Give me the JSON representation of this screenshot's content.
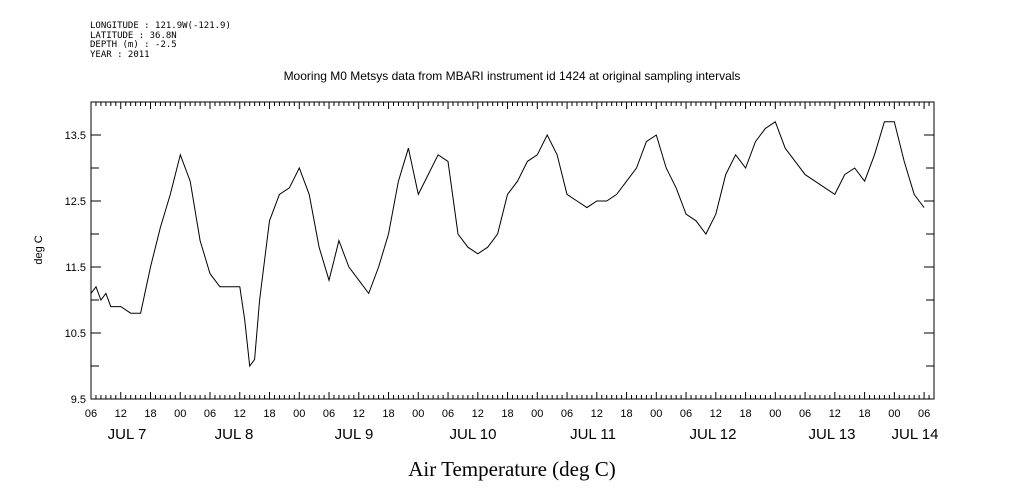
{
  "metadata": {
    "longitude": "LONGITUDE : 121.9W(-121.9)",
    "latitude": "LATITUDE : 36.8N",
    "depth": "DEPTH (m) : -2.5",
    "year": "YEAR : 2011"
  },
  "chart_data": {
    "type": "line",
    "title": "Mooring M0 Metsys data from MBARI instrument id 1424 at original sampling intervals",
    "xlabel": "Air Temperature (deg C)",
    "ylabel": "deg C",
    "ylim": [
      9.5,
      14.0
    ],
    "yticks": [
      9.5,
      10.5,
      11.5,
      12.5,
      13.5
    ],
    "xlim": [
      "2011-07-07 06:00",
      "2011-07-14 08:00"
    ],
    "x_hour_tick_labels": [
      "06",
      "12",
      "18",
      "00",
      "06",
      "12",
      "18",
      "00",
      "06",
      "12",
      "18",
      "00",
      "06",
      "12",
      "18",
      "00",
      "06",
      "12",
      "18",
      "00",
      "06",
      "12",
      "18",
      "00",
      "06",
      "12",
      "18",
      "00",
      "06"
    ],
    "x_day_labels": [
      "JUL 7",
      "JUL 8",
      "JUL 9",
      "JUL 10",
      "JUL 11",
      "JUL 12",
      "JUL 13",
      "JUL 14"
    ],
    "grid": false,
    "series": [
      {
        "color": "#000000",
        "x": [
          "2011-07-07 06:00",
          "2011-07-07 07:00",
          "2011-07-07 08:00",
          "2011-07-07 09:00",
          "2011-07-07 10:00",
          "2011-07-07 12:00",
          "2011-07-07 14:00",
          "2011-07-07 16:00",
          "2011-07-07 18:00",
          "2011-07-07 20:00",
          "2011-07-07 22:00",
          "2011-07-08 00:00",
          "2011-07-08 02:00",
          "2011-07-08 04:00",
          "2011-07-08 06:00",
          "2011-07-08 08:00",
          "2011-07-08 10:00",
          "2011-07-08 12:00",
          "2011-07-08 13:00",
          "2011-07-08 14:00",
          "2011-07-08 15:00",
          "2011-07-08 16:00",
          "2011-07-08 18:00",
          "2011-07-08 20:00",
          "2011-07-08 22:00",
          "2011-07-09 00:00",
          "2011-07-09 02:00",
          "2011-07-09 04:00",
          "2011-07-09 06:00",
          "2011-07-09 07:00",
          "2011-07-09 08:00",
          "2011-07-09 10:00",
          "2011-07-09 12:00",
          "2011-07-09 14:00",
          "2011-07-09 16:00",
          "2011-07-09 18:00",
          "2011-07-09 20:00",
          "2011-07-09 22:00",
          "2011-07-10 00:00",
          "2011-07-10 02:00",
          "2011-07-10 04:00",
          "2011-07-10 06:00",
          "2011-07-10 08:00",
          "2011-07-10 10:00",
          "2011-07-10 12:00",
          "2011-07-10 14:00",
          "2011-07-10 16:00",
          "2011-07-10 18:00",
          "2011-07-10 20:00",
          "2011-07-10 22:00",
          "2011-07-11 00:00",
          "2011-07-11 02:00",
          "2011-07-11 04:00",
          "2011-07-11 06:00",
          "2011-07-11 08:00",
          "2011-07-11 10:00",
          "2011-07-11 12:00",
          "2011-07-11 14:00",
          "2011-07-11 16:00",
          "2011-07-11 18:00",
          "2011-07-11 20:00",
          "2011-07-11 22:00",
          "2011-07-12 00:00",
          "2011-07-12 02:00",
          "2011-07-12 04:00",
          "2011-07-12 06:00",
          "2011-07-12 08:00",
          "2011-07-12 10:00",
          "2011-07-12 12:00",
          "2011-07-12 14:00",
          "2011-07-12 16:00",
          "2011-07-12 18:00",
          "2011-07-12 20:00",
          "2011-07-12 22:00",
          "2011-07-13 00:00",
          "2011-07-13 02:00",
          "2011-07-13 04:00",
          "2011-07-13 06:00",
          "2011-07-13 08:00",
          "2011-07-13 10:00",
          "2011-07-13 12:00",
          "2011-07-13 14:00",
          "2011-07-13 16:00",
          "2011-07-13 18:00",
          "2011-07-13 20:00",
          "2011-07-13 22:00",
          "2011-07-14 00:00",
          "2011-07-14 02:00",
          "2011-07-14 04:00",
          "2011-07-14 05:00",
          "2011-07-14 06:00"
        ],
        "y": [
          11.1,
          11.2,
          11.0,
          11.1,
          10.9,
          10.9,
          10.8,
          10.8,
          11.5,
          12.1,
          12.6,
          13.2,
          12.8,
          11.9,
          11.4,
          11.2,
          11.2,
          11.2,
          10.7,
          10.0,
          10.1,
          11.0,
          12.2,
          12.6,
          12.7,
          13.0,
          12.6,
          11.8,
          11.3,
          11.6,
          11.9,
          11.5,
          11.3,
          11.1,
          11.5,
          12.0,
          12.8,
          13.3,
          12.6,
          12.9,
          13.2,
          13.1,
          12.0,
          11.8,
          11.7,
          11.8,
          12.0,
          12.6,
          12.8,
          13.1,
          13.2,
          13.5,
          13.2,
          12.6,
          12.5,
          12.4,
          12.5,
          12.5,
          12.6,
          12.8,
          13.0,
          13.4,
          13.5,
          13.0,
          12.7,
          12.3,
          12.2,
          12.0,
          12.3,
          12.9,
          13.2,
          13.0,
          13.4,
          13.6,
          13.7,
          13.3,
          13.1,
          12.9,
          12.8,
          12.7,
          12.6,
          12.9,
          13.0,
          12.8,
          13.2,
          13.7,
          13.7,
          13.1,
          12.6,
          12.5,
          12.4
        ]
      }
    ]
  }
}
